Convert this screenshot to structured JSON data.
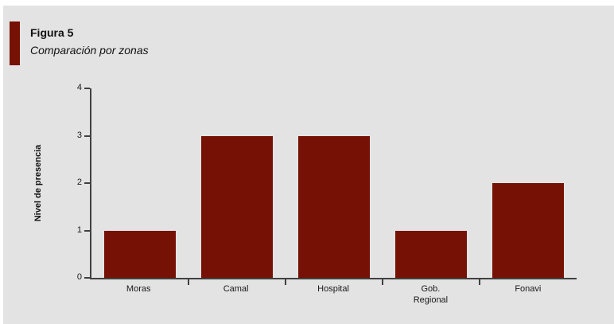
{
  "page": {
    "panel_background": "#e3e3e3",
    "margin_color": "#ffffff"
  },
  "header": {
    "figure_label": "Figura 5",
    "subtitle": "Comparación por zonas",
    "accent_color": "#761105"
  },
  "chart_data": {
    "type": "bar",
    "categories": [
      "Moras",
      "Camal",
      "Hospital",
      "Gob.\nRegional",
      "Fonavi"
    ],
    "values": [
      1,
      3,
      3,
      1,
      2
    ],
    "title": "Figura 5",
    "subtitle": "Comparación por zonas",
    "xlabel": "",
    "ylabel": "Nivel de presencia",
    "ylim": [
      0,
      4
    ],
    "yticks": [
      0,
      1,
      2,
      3,
      4
    ],
    "bar_color": "#761105",
    "axis_color": "#404040",
    "grid": false,
    "legend_position": "none"
  }
}
